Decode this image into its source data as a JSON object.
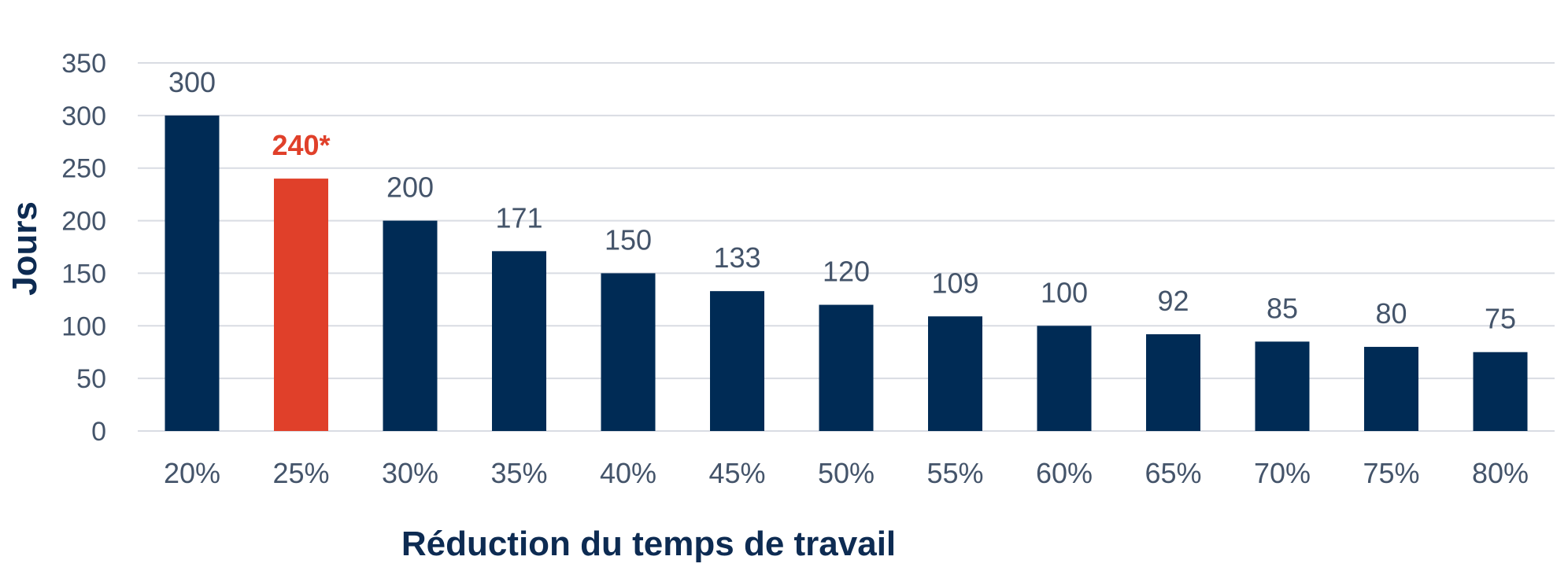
{
  "chart_data": {
    "type": "bar",
    "title": "",
    "xlabel": "Réduction du temps de travail",
    "ylabel": "Jours",
    "ylim": [
      0,
      350
    ],
    "yticks": [
      0,
      50,
      100,
      150,
      200,
      250,
      300,
      350
    ],
    "grid": true,
    "categories": [
      "20%",
      "25%",
      "30%",
      "35%",
      "40%",
      "45%",
      "50%",
      "55%",
      "60%",
      "65%",
      "70%",
      "75%",
      "80%"
    ],
    "values": [
      300,
      240,
      200,
      171,
      150,
      133,
      120,
      109,
      100,
      92,
      85,
      80,
      75
    ],
    "data_labels": [
      "300",
      "240*",
      "200",
      "171",
      "150",
      "133",
      "120",
      "109",
      "100",
      "92",
      "85",
      "80",
      "75"
    ],
    "highlight_index": 1,
    "colors": {
      "bar": "#002b55",
      "highlight": "#e0402a",
      "grid": "#d9dce3",
      "text": "#44546a",
      "title": "#0d2b52"
    }
  }
}
